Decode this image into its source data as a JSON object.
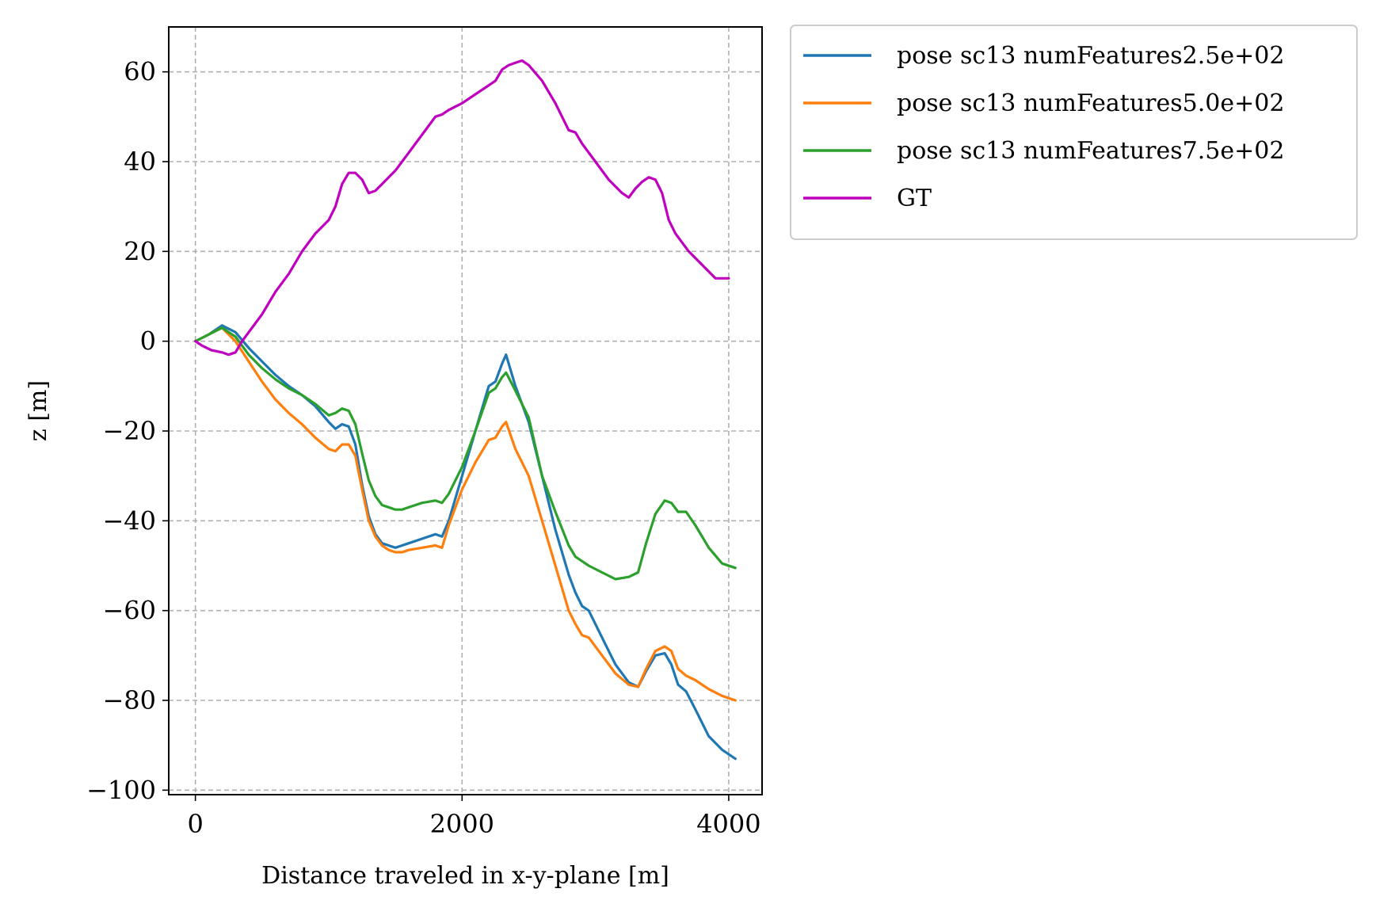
{
  "chart_data": {
    "type": "line",
    "title": "",
    "xlabel": "Distance traveled in x-y-plane [m]",
    "ylabel": "z [m]",
    "xlim": [
      -200,
      4250
    ],
    "ylim": [
      -101,
      70
    ],
    "xticks": [
      0,
      2000,
      4000
    ],
    "xtick_labels": [
      "0",
      "2000",
      "4000"
    ],
    "yticks": [
      -100,
      -80,
      -60,
      -40,
      -20,
      0,
      20,
      40,
      60
    ],
    "ytick_labels": [
      "−100",
      "−80",
      "−60",
      "−40",
      "−20",
      "0",
      "20",
      "40",
      "60"
    ],
    "grid": true,
    "legend_position": "outside-top-right",
    "series": [
      {
        "name": "pose sc13 numFeatures2.5e+02",
        "color": "#1f77b4",
        "x": [
          0,
          100,
          200,
          300,
          400,
          500,
          600,
          700,
          800,
          900,
          1000,
          1050,
          1100,
          1150,
          1200,
          1250,
          1300,
          1350,
          1400,
          1450,
          1500,
          1550,
          1600,
          1700,
          1800,
          1850,
          1900,
          2000,
          2100,
          2200,
          2250,
          2300,
          2330,
          2400,
          2500,
          2600,
          2700,
          2800,
          2850,
          2900,
          2950,
          3050,
          3150,
          3250,
          3320,
          3380,
          3450,
          3520,
          3570,
          3620,
          3680,
          3750,
          3850,
          3950,
          4050
        ],
        "y": [
          0,
          1.5,
          3.5,
          2,
          -1.5,
          -4.5,
          -7.5,
          -10,
          -12,
          -14.5,
          -18,
          -19.5,
          -18.5,
          -19,
          -23,
          -32,
          -39,
          -43,
          -45,
          -45.5,
          -46,
          -45.5,
          -45,
          -44,
          -43,
          -43.5,
          -40,
          -30,
          -20,
          -10,
          -9,
          -5,
          -3,
          -10,
          -18,
          -30,
          -42,
          -52,
          -56,
          -59,
          -60,
          -66,
          -72,
          -76,
          -77,
          -73.5,
          -70,
          -69.5,
          -72,
          -76.5,
          -78,
          -82,
          -88,
          -91,
          -93
        ]
      },
      {
        "name": "pose sc13 numFeatures5.0e+02",
        "color": "#ff7f0e",
        "x": [
          0,
          100,
          200,
          300,
          400,
          500,
          600,
          700,
          800,
          900,
          1000,
          1050,
          1100,
          1150,
          1200,
          1250,
          1300,
          1350,
          1400,
          1450,
          1500,
          1550,
          1600,
          1700,
          1800,
          1850,
          1900,
          2000,
          2100,
          2200,
          2250,
          2300,
          2330,
          2400,
          2500,
          2600,
          2700,
          2800,
          2850,
          2900,
          2950,
          3050,
          3150,
          3250,
          3320,
          3380,
          3450,
          3520,
          3570,
          3620,
          3680,
          3750,
          3850,
          3950,
          4050
        ],
        "y": [
          0,
          1.5,
          3,
          0,
          -4.5,
          -9,
          -13,
          -16,
          -18.5,
          -21.5,
          -24,
          -24.5,
          -23,
          -23,
          -25.5,
          -33,
          -40,
          -43.5,
          -45.5,
          -46.5,
          -47,
          -47,
          -46.5,
          -46,
          -45.5,
          -46,
          -41,
          -33,
          -27,
          -22,
          -21.5,
          -19,
          -18,
          -24,
          -30,
          -40,
          -50,
          -60,
          -63,
          -65.5,
          -66,
          -70,
          -74,
          -76.5,
          -77,
          -73,
          -69,
          -68,
          -69,
          -73,
          -74.5,
          -75.5,
          -77.5,
          -79,
          -80
        ]
      },
      {
        "name": "pose sc13 numFeatures7.5e+02",
        "color": "#2ca02c",
        "x": [
          0,
          100,
          200,
          300,
          400,
          500,
          600,
          700,
          800,
          900,
          1000,
          1050,
          1100,
          1150,
          1200,
          1250,
          1300,
          1350,
          1400,
          1450,
          1500,
          1550,
          1600,
          1700,
          1800,
          1850,
          1900,
          2000,
          2100,
          2200,
          2250,
          2300,
          2330,
          2400,
          2500,
          2600,
          2700,
          2800,
          2850,
          2900,
          2950,
          3050,
          3150,
          3250,
          3320,
          3380,
          3450,
          3520,
          3570,
          3620,
          3680,
          3750,
          3850,
          3950,
          4050
        ],
        "y": [
          0,
          1.5,
          3,
          1,
          -3,
          -6,
          -8.5,
          -10.5,
          -12,
          -14,
          -16.5,
          -16,
          -15,
          -15.5,
          -18.5,
          -25,
          -31,
          -34.5,
          -36.5,
          -37,
          -37.5,
          -37.5,
          -37,
          -36,
          -35.5,
          -36,
          -34,
          -28,
          -20,
          -11.5,
          -10.5,
          -8,
          -7,
          -11,
          -17,
          -30,
          -38,
          -45.5,
          -48,
          -49,
          -50,
          -51.5,
          -53,
          -52.5,
          -51.5,
          -45,
          -38.5,
          -35.5,
          -36,
          -38,
          -38,
          -41,
          -46,
          -49.5,
          -50.5
        ]
      },
      {
        "name": "GT",
        "color": "#bf00bf",
        "x": [
          0,
          50,
          120,
          200,
          250,
          300,
          350,
          400,
          450,
          500,
          600,
          700,
          800,
          900,
          1000,
          1050,
          1100,
          1150,
          1200,
          1250,
          1300,
          1350,
          1400,
          1450,
          1500,
          1600,
          1700,
          1800,
          1850,
          1900,
          2000,
          2100,
          2200,
          2250,
          2300,
          2350,
          2400,
          2450,
          2500,
          2600,
          2700,
          2800,
          2850,
          2900,
          3000,
          3100,
          3200,
          3250,
          3300,
          3350,
          3400,
          3450,
          3500,
          3550,
          3600,
          3700,
          3800,
          3900,
          4000
        ],
        "y": [
          0,
          -1,
          -2,
          -2.5,
          -3,
          -2.5,
          0,
          2,
          4,
          6,
          11,
          15,
          20,
          24,
          27,
          30,
          35,
          37.5,
          37.5,
          36,
          33,
          33.5,
          35,
          36.5,
          38,
          42,
          46,
          50,
          50.5,
          51.5,
          53,
          55,
          57,
          58,
          60.5,
          61.5,
          62,
          62.5,
          61.5,
          58,
          53,
          47,
          46.5,
          44,
          40,
          36,
          33,
          32,
          34,
          35.5,
          36.5,
          36,
          33,
          27,
          24,
          20,
          17,
          14,
          14
        ]
      }
    ]
  }
}
